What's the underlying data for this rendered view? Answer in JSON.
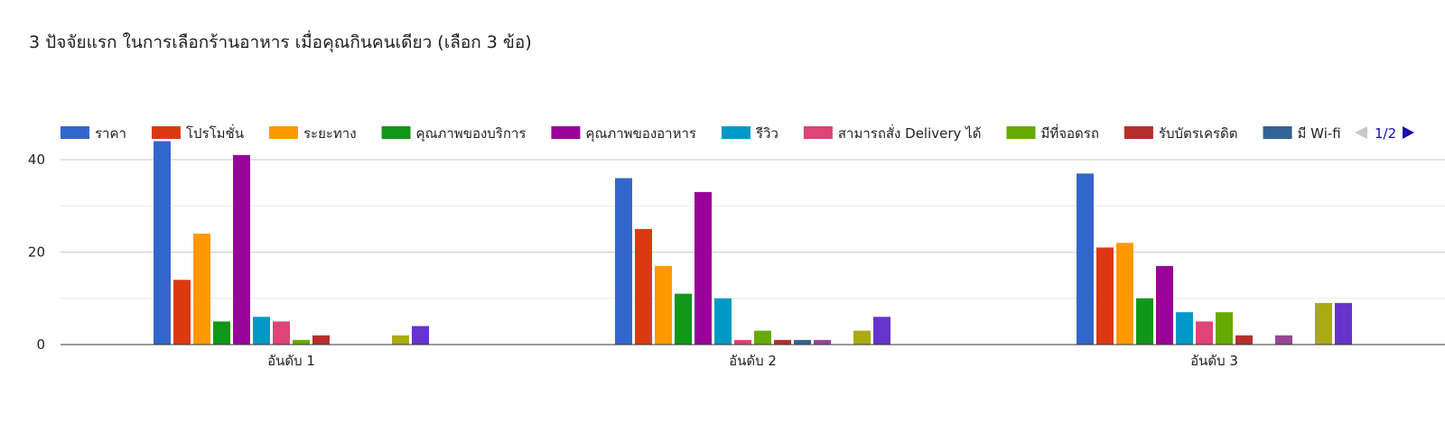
{
  "chart_data": {
    "type": "bar",
    "title": "3 ปัจจัยแรก ในการเลือกร้านอาหาร เมื่อคุณกินคนเดียว (เลือก 3 ข้อ)",
    "categories": [
      "อันดับ 1",
      "อันดับ 2",
      "อันดับ 3"
    ],
    "ylim": [
      0,
      48
    ],
    "yticks": [
      0,
      20,
      40
    ],
    "grid": true,
    "legend_position": "top",
    "legend_page": "1/2",
    "series": [
      {
        "name": "ราคา",
        "color": "#3366cc",
        "values": [
          44,
          36,
          37
        ]
      },
      {
        "name": "โปรโมชั่น",
        "color": "#dc3912",
        "values": [
          14,
          25,
          21
        ]
      },
      {
        "name": "ระยะทาง",
        "color": "#ff9900",
        "values": [
          24,
          17,
          22
        ]
      },
      {
        "name": "คุณภาพของบริการ",
        "color": "#109618",
        "values": [
          5,
          11,
          10
        ]
      },
      {
        "name": "คุณภาพของอาหาร",
        "color": "#990099",
        "values": [
          41,
          33,
          17
        ]
      },
      {
        "name": "รีวิว",
        "color": "#0099c6",
        "values": [
          6,
          10,
          7
        ]
      },
      {
        "name": "สามารถสั่ง Delivery ได้",
        "color": "#dd4477",
        "values": [
          5,
          1,
          5
        ]
      },
      {
        "name": "มีที่จอดรถ",
        "color": "#66aa00",
        "values": [
          1,
          3,
          7
        ]
      },
      {
        "name": "รับบัตรเครดิต",
        "color": "#b82e2e",
        "values": [
          2,
          1,
          2
        ]
      },
      {
        "name": "มี Wi-fi",
        "color": "#316395",
        "values": [
          0,
          1,
          0
        ]
      },
      {
        "name": "",
        "color": "#994499",
        "values": [
          0,
          1,
          2
        ]
      },
      {
        "name": "",
        "color": "#22aa99",
        "values": [
          0,
          0,
          0
        ]
      },
      {
        "name": "",
        "color": "#aaaa11",
        "values": [
          2,
          3,
          9
        ]
      },
      {
        "name": "",
        "color": "#6633cc",
        "values": [
          4,
          6,
          9
        ]
      }
    ]
  }
}
